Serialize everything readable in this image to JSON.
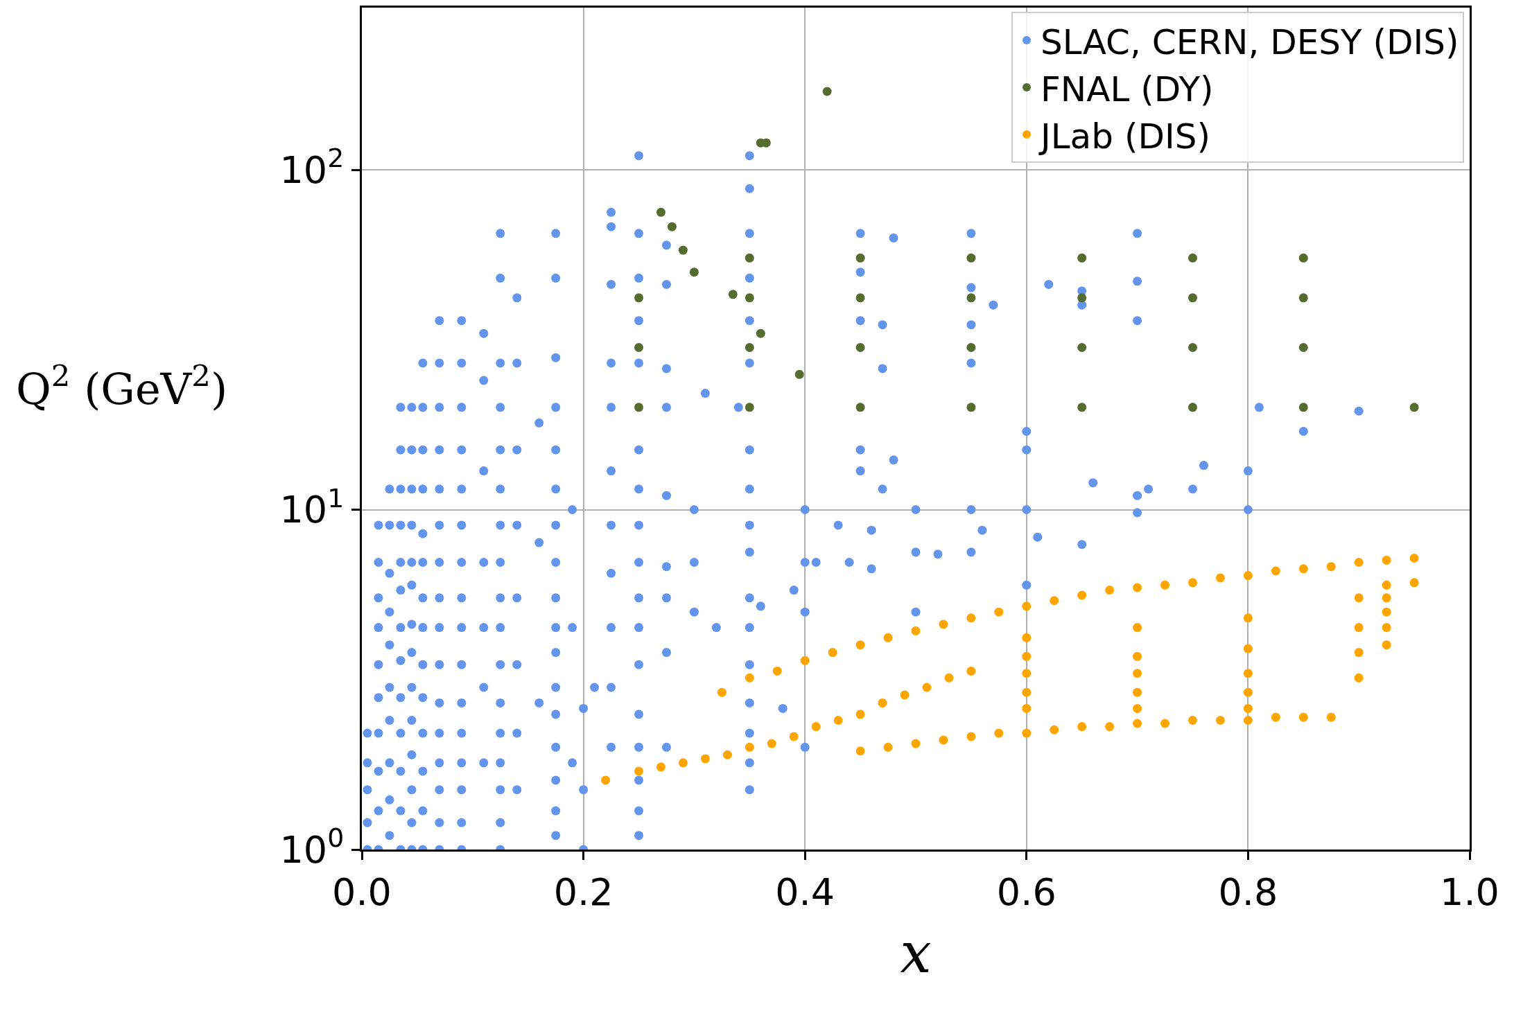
{
  "chart_data": {
    "type": "scatter",
    "xlabel": "x",
    "ylabel": "Q$^{2}$ (GeV$^{2}$)",
    "xlim": [
      0,
      1
    ],
    "ylim": [
      1,
      300
    ],
    "log": "y",
    "grid": true,
    "legend": "top right",
    "marker": "circle",
    "xticks": [
      {
        "value": 0,
        "label": "0.0"
      },
      {
        "value": 0.2,
        "label": "0.2"
      },
      {
        "value": 0.4,
        "label": "0.4"
      },
      {
        "value": 0.6,
        "label": "0.6"
      },
      {
        "value": 0.8,
        "label": "0.8"
      },
      {
        "value": 1,
        "label": "1.0"
      }
    ],
    "yticks": [
      {
        "value": 1,
        "label": "10$^{0}$"
      },
      {
        "value": 10,
        "label": "10$^{1}$"
      },
      {
        "value": 100,
        "label": "10$^{2}$"
      }
    ],
    "series": [
      {
        "name": "SLAC, CERN, DESY (DIS)",
        "color": "#6495ed",
        "x": [
          0.07,
          0.07,
          0.07,
          0.07,
          0.07,
          0.07,
          0.07,
          0.07,
          0.07,
          0.07,
          0.07,
          0.07,
          0.07,
          0.07,
          0.07,
          0.07,
          0.09,
          0.09,
          0.09,
          0.09,
          0.09,
          0.09,
          0.09,
          0.09,
          0.09,
          0.09,
          0.09,
          0.09,
          0.09,
          0.09,
          0.09,
          0.09,
          0.125,
          0.125,
          0.125,
          0.125,
          0.125,
          0.125,
          0.125,
          0.125,
          0.125,
          0.125,
          0.125,
          0.125,
          0.125,
          0.125,
          0.125,
          0.125,
          0.125,
          0.175,
          0.175,
          0.175,
          0.175,
          0.175,
          0.175,
          0.175,
          0.175,
          0.175,
          0.175,
          0.175,
          0.175,
          0.175,
          0.175,
          0.175,
          0.175,
          0.175,
          0.25,
          0.25,
          0.25,
          0.25,
          0.25,
          0.25,
          0.25,
          0.25,
          0.25,
          0.25,
          0.25,
          0.25,
          0.25,
          0.25,
          0.25,
          0.25,
          0.25,
          0.35,
          0.35,
          0.35,
          0.35,
          0.35,
          0.35,
          0.35,
          0.35,
          0.35,
          0.35,
          0.35,
          0.35,
          0.35,
          0.35,
          0.35,
          0.35,
          0.35,
          0.005,
          0.005,
          0.005,
          0.005,
          0.005,
          0.015,
          0.015,
          0.015,
          0.015,
          0.015,
          0.015,
          0.015,
          0.015,
          0.015,
          0.015,
          0.025,
          0.025,
          0.025,
          0.025,
          0.025,
          0.025,
          0.025,
          0.025,
          0.025,
          0.025,
          0.035,
          0.035,
          0.035,
          0.035,
          0.035,
          0.035,
          0.035,
          0.035,
          0.035,
          0.035,
          0.035,
          0.035,
          0.035,
          0.045,
          0.045,
          0.045,
          0.045,
          0.045,
          0.045,
          0.045,
          0.045,
          0.045,
          0.045,
          0.045,
          0.045,
          0.045,
          0.045,
          0.055,
          0.055,
          0.055,
          0.055,
          0.055,
          0.055,
          0.055,
          0.055,
          0.055,
          0.055,
          0.055,
          0.055,
          0.055,
          0.055,
          0.11,
          0.11,
          0.11,
          0.11,
          0.11,
          0.11,
          0.11,
          0.14,
          0.14,
          0.14,
          0.14,
          0.14,
          0.14,
          0.14,
          0.14,
          0.16,
          0.16,
          0.16,
          0.19,
          0.19,
          0.19,
          0.225,
          0.225,
          0.225,
          0.225,
          0.225,
          0.225,
          0.225,
          0.225,
          0.225,
          0.225,
          0.225,
          0.275,
          0.275,
          0.275,
          0.275,
          0.275,
          0.275,
          0.275,
          0.275,
          0.275,
          0.2,
          0.2,
          0.2,
          0.21,
          0.3,
          0.3,
          0.3,
          0.31,
          0.32,
          0.34,
          0.36,
          0.38,
          0.4,
          0.4,
          0.4,
          0.4,
          0.39,
          0.41,
          0.43,
          0.44,
          0.46,
          0.46,
          0.45,
          0.45,
          0.45,
          0.45,
          0.45,
          0.47,
          0.47,
          0.47,
          0.48,
          0.48,
          0.5,
          0.5,
          0.5,
          0.52,
          0.55,
          0.55,
          0.55,
          0.55,
          0.55,
          0.55,
          0.56,
          0.57,
          0.6,
          0.6,
          0.6,
          0.6,
          0.61,
          0.62,
          0.65,
          0.65,
          0.65,
          0.66,
          0.7,
          0.7,
          0.7,
          0.7,
          0.7,
          0.71,
          0.75,
          0.76,
          0.8,
          0.8,
          0.81,
          0.85,
          0.9
        ],
        "values": [
          1.0,
          1.2,
          1.5,
          1.8,
          2.2,
          2.7,
          3.5,
          4.5,
          5.5,
          7,
          9,
          11.5,
          15,
          20,
          27,
          36,
          1.0,
          1.2,
          1.5,
          1.8,
          2.2,
          2.7,
          3.5,
          4.5,
          5.5,
          7,
          9,
          11.5,
          15,
          20,
          27,
          36,
          1.0,
          1.2,
          1.5,
          1.8,
          2.2,
          2.7,
          3.5,
          4.5,
          5.5,
          7,
          9,
          11.5,
          15,
          20,
          27,
          48,
          65,
          1.1,
          1.3,
          1.6,
          2.0,
          2.5,
          3.0,
          3.8,
          4.5,
          5.5,
          7,
          9,
          11.5,
          15,
          20,
          28,
          48,
          65,
          1.1,
          1.3,
          1.6,
          2.0,
          2.5,
          3.5,
          4.5,
          5.5,
          7,
          9,
          11.5,
          15,
          27,
          36,
          48,
          65,
          110,
          1.5,
          1.8,
          2.2,
          2.7,
          3.5,
          4.5,
          5.5,
          7.5,
          9,
          11.5,
          15,
          27,
          36,
          48,
          65,
          88,
          110,
          1.0,
          1.2,
          1.5,
          1.8,
          2.2,
          1.0,
          1.3,
          1.7,
          2.2,
          2.8,
          3.5,
          4.5,
          5.5,
          7,
          9,
          1.1,
          1.4,
          1.8,
          2.4,
          3.0,
          4.0,
          5.0,
          6.5,
          9,
          11.5,
          1.0,
          1.3,
          1.7,
          2.2,
          2.8,
          3.6,
          4.5,
          5.8,
          7,
          9,
          11.5,
          15,
          20,
          1.0,
          1.2,
          1.5,
          1.9,
          2.4,
          3.0,
          3.8,
          4.6,
          6,
          7,
          9,
          11.5,
          15,
          20,
          1.0,
          1.3,
          1.7,
          2.2,
          2.8,
          3.5,
          4.5,
          5.5,
          7,
          8.5,
          11.5,
          15,
          20,
          27,
          1.8,
          3.0,
          4.5,
          7,
          13,
          24,
          33,
          1.5,
          2.2,
          3.5,
          5.5,
          9,
          15,
          27,
          42,
          2.7,
          8,
          18,
          1.8,
          4.5,
          10,
          2.0,
          3.0,
          4.5,
          6.5,
          9,
          13,
          20,
          27,
          46,
          68,
          75,
          2.0,
          3.8,
          5.5,
          6.8,
          11,
          20,
          26,
          46,
          60,
          1.0,
          1.5,
          2.6,
          3,
          10,
          7,
          5,
          22,
          4.5,
          20,
          5.2,
          2.6,
          10,
          7,
          5,
          2,
          5.8,
          7,
          9,
          7,
          8.7,
          6.7,
          15,
          13,
          36,
          65,
          50,
          11.5,
          26,
          35,
          14,
          63,
          10,
          7.5,
          5,
          7.4,
          10,
          7.5,
          27,
          35,
          65,
          45,
          8.7,
          40,
          17,
          15,
          10,
          6,
          8.3,
          46,
          44,
          40,
          7.9,
          12,
          65,
          47,
          36,
          11,
          9.8,
          11.5,
          11.5,
          13.5,
          13,
          10,
          20,
          17,
          19.5
        ]
      },
      {
        "name": "FNAL (DY)",
        "color": "#556b2f",
        "x": [
          0.27,
          0.28,
          0.29,
          0.3,
          0.335,
          0.36,
          0.365,
          0.36,
          0.395,
          0.42,
          0.25,
          0.25,
          0.25,
          0.35,
          0.35,
          0.35,
          0.35,
          0.45,
          0.45,
          0.45,
          0.45,
          0.55,
          0.55,
          0.55,
          0.55,
          0.65,
          0.65,
          0.65,
          0.65,
          0.75,
          0.75,
          0.75,
          0.75,
          0.85,
          0.85,
          0.85,
          0.85,
          0.95
        ],
        "values": [
          75,
          68,
          58,
          50,
          43,
          120,
          120,
          33,
          25,
          170,
          42,
          30,
          20,
          55,
          42,
          30,
          20,
          55,
          42,
          30,
          20,
          55,
          42,
          30,
          20,
          55,
          42,
          30,
          20,
          55,
          42,
          30,
          20,
          55,
          42,
          30,
          20,
          20
        ]
      },
      {
        "name": "JLab (DIS)",
        "color": "#ffa500",
        "x": [
          0.22,
          0.25,
          0.27,
          0.29,
          0.31,
          0.33,
          0.35,
          0.37,
          0.39,
          0.41,
          0.43,
          0.45,
          0.47,
          0.49,
          0.51,
          0.53,
          0.55,
          0.325,
          0.35,
          0.375,
          0.4,
          0.425,
          0.45,
          0.475,
          0.5,
          0.525,
          0.55,
          0.575,
          0.6,
          0.625,
          0.65,
          0.675,
          0.7,
          0.725,
          0.75,
          0.775,
          0.8,
          0.825,
          0.85,
          0.875,
          0.9,
          0.925,
          0.95,
          0.45,
          0.475,
          0.5,
          0.525,
          0.55,
          0.575,
          0.6,
          0.625,
          0.65,
          0.675,
          0.7,
          0.725,
          0.75,
          0.775,
          0.8,
          0.825,
          0.85,
          0.875,
          0.6,
          0.6,
          0.6,
          0.6,
          0.6,
          0.7,
          0.7,
          0.7,
          0.7,
          0.7,
          0.8,
          0.8,
          0.8,
          0.8,
          0.8,
          0.9,
          0.9,
          0.9,
          0.9,
          0.925,
          0.925,
          0.925,
          0.925,
          0.925,
          0.95
        ],
        "values": [
          1.6,
          1.7,
          1.75,
          1.8,
          1.85,
          1.9,
          2.0,
          2.05,
          2.15,
          2.3,
          2.4,
          2.5,
          2.7,
          2.85,
          3.0,
          3.2,
          3.35,
          2.9,
          3.2,
          3.35,
          3.6,
          3.8,
          4.0,
          4.2,
          4.4,
          4.6,
          4.8,
          5.0,
          5.2,
          5.4,
          5.6,
          5.8,
          5.9,
          6.0,
          6.1,
          6.3,
          6.4,
          6.6,
          6.7,
          6.8,
          7.0,
          7.1,
          7.2,
          1.95,
          2.0,
          2.05,
          2.1,
          2.15,
          2.2,
          2.2,
          2.25,
          2.3,
          2.3,
          2.35,
          2.35,
          2.4,
          2.4,
          2.4,
          2.45,
          2.45,
          2.45,
          2.6,
          2.9,
          3.3,
          3.7,
          4.2,
          2.6,
          2.9,
          3.3,
          3.7,
          4.5,
          2.6,
          2.9,
          3.3,
          3.9,
          4.8,
          3.2,
          3.8,
          4.5,
          5.5,
          4.0,
          4.5,
          5.0,
          5.5,
          6.0,
          6.1
        ]
      }
    ]
  }
}
